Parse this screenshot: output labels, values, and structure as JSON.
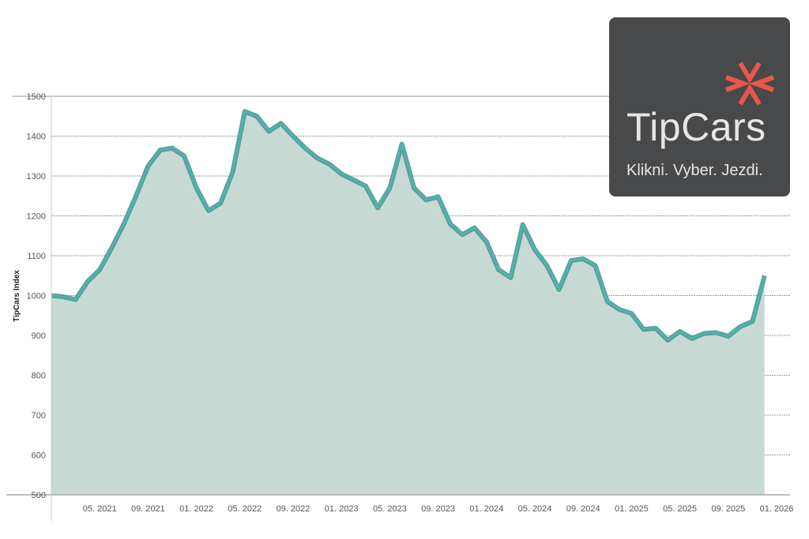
{
  "chart_data": {
    "type": "area",
    "title": "",
    "xlabel": "",
    "ylabel": "TipCars Index",
    "ylim": [
      500,
      1500
    ],
    "yticks": [
      500,
      600,
      700,
      800,
      900,
      1000,
      1100,
      1200,
      1300,
      1400,
      1500
    ],
    "xtick_labels": [
      "05. 2021",
      "09. 2021",
      "01. 2022",
      "05. 2022",
      "09. 2022",
      "01. 2023",
      "05. 2023",
      "09. 2023",
      "01. 2024",
      "05. 2024",
      "09. 2024",
      "01. 2025",
      "05. 2025",
      "09. 2025",
      "01. 2026"
    ],
    "xtick_dates": [
      "2021-05",
      "2021-09",
      "2022-01",
      "2022-05",
      "2022-09",
      "2023-01",
      "2023-05",
      "2023-09",
      "2024-01",
      "2024-05",
      "2024-09",
      "2025-01",
      "2025-05",
      "2025-09",
      "2026-01"
    ],
    "x_start": "2021-01",
    "x_frequency": "monthly",
    "grid": "horizontal",
    "colors": {
      "line": "#4fb8b0",
      "line_dark": "#3f8f88",
      "fill": "#c6d9d2",
      "grid": "#999999"
    },
    "values": [
      1000,
      997,
      990,
      1035,
      1065,
      1120,
      1180,
      1250,
      1325,
      1365,
      1370,
      1350,
      1270,
      1213,
      1232,
      1310,
      1462,
      1450,
      1412,
      1432,
      1400,
      1370,
      1345,
      1330,
      1305,
      1290,
      1275,
      1220,
      1270,
      1380,
      1270,
      1240,
      1248,
      1180,
      1153,
      1170,
      1135,
      1065,
      1045,
      1178,
      1115,
      1075,
      1015,
      1088,
      1092,
      1075,
      985,
      965,
      955,
      915,
      918,
      888,
      910,
      892,
      905,
      907,
      898,
      922,
      935,
      1050
    ]
  },
  "logo": {
    "brand": "TipCars",
    "tagline": "Klikni. Vyber. Jezdi.",
    "icon": "asterisk-arrows-icon",
    "colors": {
      "background": "#48494b",
      "accent": "#e8574a",
      "text": "#e6e6e3"
    }
  }
}
